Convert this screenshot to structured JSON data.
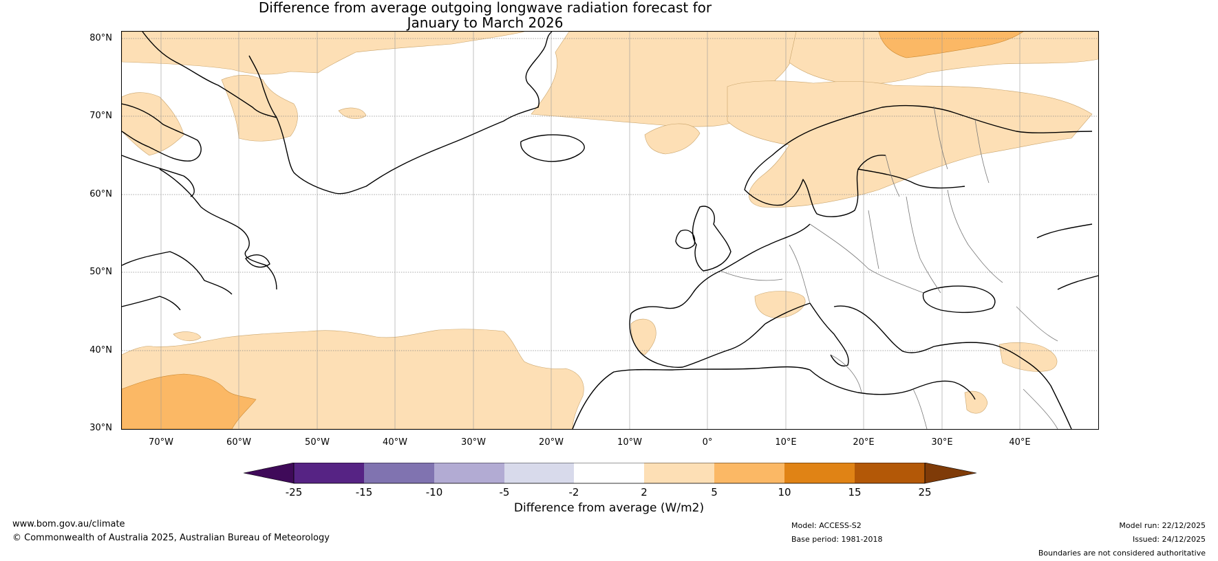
{
  "title": {
    "line1": "Difference from average outgoing longwave radiation forecast for",
    "line2": "January to March 2026"
  },
  "map": {
    "lat_labels": [
      "80°N",
      "70°N",
      "60°N",
      "50°N",
      "40°N",
      "30°N"
    ],
    "lon_labels": [
      "70°W",
      "60°W",
      "50°W",
      "40°W",
      "30°W",
      "20°W",
      "10°W",
      "0°",
      "10°E",
      "20°E",
      "30°E",
      "40°E"
    ],
    "lat_range": [
      30,
      81
    ],
    "lon_range": [
      -75,
      50
    ]
  },
  "colorbar": {
    "title": "Difference from average (W/m2)",
    "ticks": [
      "-25",
      "-15",
      "-10",
      "-5",
      "-2",
      "2",
      "5",
      "10",
      "15",
      "25"
    ],
    "colors": [
      "#3f0a59",
      "#562384",
      "#8073b0",
      "#b2abd3",
      "#d8daeb",
      "#ffffff",
      "#fddfb5",
      "#fbb865",
      "#e08315",
      "#b35807",
      "#7f3b08"
    ],
    "extend": "both"
  },
  "footer": {
    "website": "www.bom.gov.au/climate",
    "copyright": "© Commonwealth of Australia 2025, Australian Bureau of Meteorology",
    "model": "Model: ACCESS-S2",
    "base_period": "Base period: 1981-2018",
    "model_run": "Model run: 22/12/2025",
    "issued": "Issued: 24/12/2025",
    "disclaimer": "Boundaries are not considered authoritative"
  }
}
